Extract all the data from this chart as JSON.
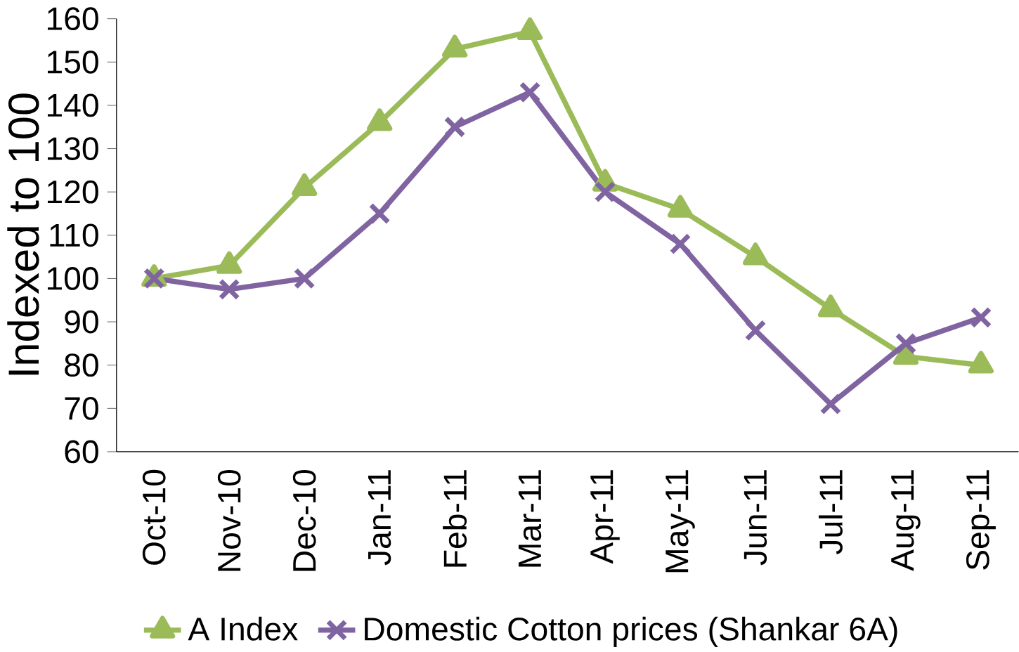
{
  "chart_data": {
    "type": "line",
    "ylabel": "Indexed to 100",
    "categories": [
      "Oct-10",
      "Nov-10",
      "Dec-10",
      "Jan-11",
      "Feb-11",
      "Mar-11",
      "Apr-11",
      "May-11",
      "Jun-11",
      "Jul-11",
      "Aug-11",
      "Sep-11"
    ],
    "series": [
      {
        "name": "A Index",
        "color": "#9bbb59",
        "marker": "triangle",
        "values": [
          100,
          103,
          121,
          136,
          153,
          157,
          122,
          116,
          105,
          93,
          82,
          80
        ]
      },
      {
        "name": "Domestic Cotton prices (Shankar 6A)",
        "color": "#8064a2",
        "marker": "cross",
        "values": [
          100,
          97.5,
          100,
          115,
          135,
          143,
          120,
          108,
          88,
          71,
          85,
          91
        ]
      }
    ],
    "ylim": [
      60,
      160
    ],
    "yticks": [
      60,
      70,
      80,
      90,
      100,
      110,
      120,
      130,
      140,
      150,
      160
    ],
    "grid": false,
    "legend": "bottom",
    "line_style": "solid"
  }
}
